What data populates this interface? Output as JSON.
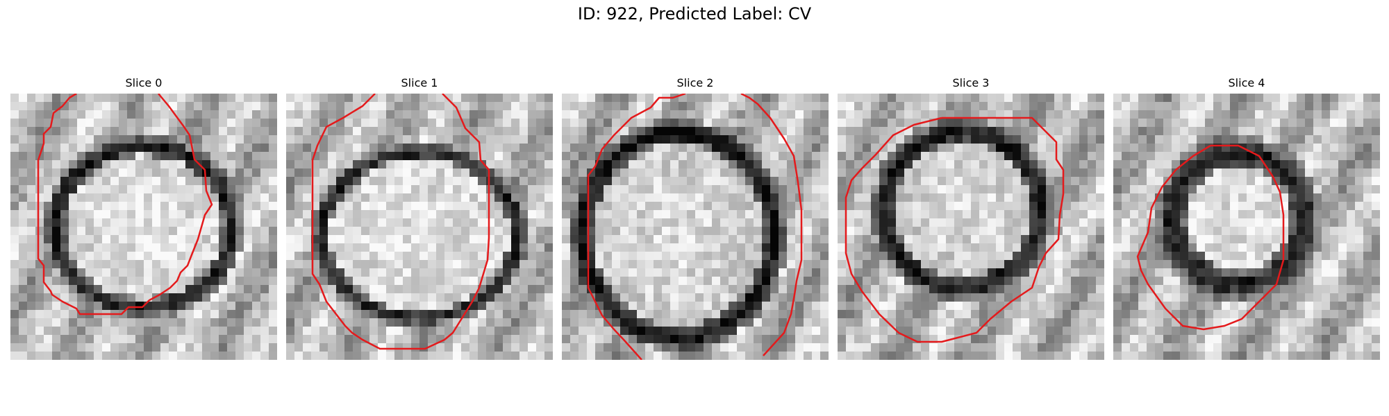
{
  "figure": {
    "title": "ID: 922, Predicted Label: CV",
    "overlay_color": "#e41a1c",
    "slices": [
      {
        "label": "Slice 0"
      },
      {
        "label": "Slice 1"
      },
      {
        "label": "Slice 2"
      },
      {
        "label": "Slice 3"
      },
      {
        "label": "Slice 4"
      }
    ]
  }
}
